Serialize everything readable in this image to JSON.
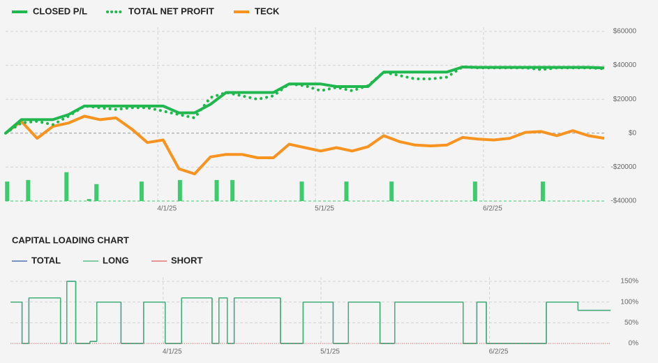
{
  "chart_data": [
    {
      "type": "line",
      "x": [
        2,
        5,
        8,
        11,
        14,
        17,
        20,
        23,
        26,
        29,
        32,
        35,
        38,
        41,
        44,
        47,
        50,
        53,
        56,
        59,
        62,
        65,
        68,
        71,
        74,
        77,
        80,
        83,
        86,
        89,
        92,
        95,
        98,
        101,
        104,
        107,
        110,
        113,
        116
      ],
      "series": [
        {
          "name": "CLOSED P/L",
          "color": "#1fb74e",
          "style": "solid",
          "values": [
            0,
            8000,
            8000,
            8000,
            11000,
            16000,
            16000,
            16000,
            16000,
            16000,
            16000,
            12000,
            12000,
            17000,
            24000,
            24000,
            24000,
            24000,
            29000,
            29000,
            29000,
            27500,
            27500,
            27500,
            36000,
            36000,
            36000,
            36000,
            36000,
            39000,
            38800,
            38800,
            38800,
            38800,
            38800,
            38800,
            38800,
            38800,
            38500
          ]
        },
        {
          "name": "TOTAL NET PROFIT",
          "color": "#1fb74e",
          "style": "dotted",
          "values": [
            0,
            6000,
            7000,
            5000,
            10000,
            16000,
            15000,
            14000,
            15000,
            15000,
            13000,
            11000,
            9000,
            21000,
            24000,
            22000,
            20000,
            22000,
            29000,
            28000,
            25000,
            27000,
            25000,
            28000,
            36000,
            34000,
            32000,
            32000,
            33000,
            39000,
            38500,
            38500,
            38500,
            38500,
            37500,
            38500,
            38500,
            38500,
            38000
          ]
        },
        {
          "name": "TECK",
          "color": "#f7931e",
          "style": "solid",
          "values": [
            0,
            7000,
            -3000,
            4000,
            6000,
            10000,
            8000,
            9000,
            2500,
            -5500,
            -4000,
            -21000,
            -24000,
            -14000,
            -12500,
            -12500,
            -14500,
            -14500,
            -6500,
            -8500,
            -10500,
            -8500,
            -10500,
            -8000,
            -1500,
            -5000,
            -7000,
            -7500,
            -7000,
            -2500,
            -3500,
            -4000,
            -3000,
            500,
            1000,
            -1500,
            1500,
            -1500,
            -3000
          ]
        }
      ],
      "bars": {
        "color": "#3ecb6d",
        "x": [
          2.3,
          6.3,
          13.6,
          17.9,
          19.3,
          27.9,
          35.2,
          42.2,
          45.2,
          58.4,
          66.9,
          75.5,
          91.4,
          104.3
        ],
        "values": [
          -28500,
          -27600,
          -23000,
          -38800,
          -30000,
          -28500,
          -27600,
          -27600,
          -27600,
          -28500,
          -28500,
          -28500,
          -28500,
          -28500
        ]
      },
      "xlim": [
        2,
        116
      ],
      "xticks": [
        {
          "value": 31,
          "label": "4/1/25"
        },
        {
          "value": 61,
          "label": "5/1/25"
        },
        {
          "value": 93,
          "label": "6/2/25"
        }
      ],
      "ylim": [
        -40000,
        60000
      ],
      "yticks": [
        {
          "value": -40000,
          "label": "-$40000"
        },
        {
          "value": -20000,
          "label": "-$20000"
        },
        {
          "value": 0,
          "label": "$0"
        },
        {
          "value": 20000,
          "label": "$20000"
        },
        {
          "value": 40000,
          "label": "$40000"
        },
        {
          "value": 60000,
          "label": "$60000"
        }
      ],
      "grid": true
    },
    {
      "type": "step",
      "title": "CAPITAL LOADING CHART",
      "series": [
        {
          "name": "TOTAL",
          "color": "#2f55a4",
          "x": [
            2,
            4.2,
            5.5,
            11.5,
            12.7,
            14.4,
            17.1,
            18.4,
            23,
            27.3,
            31.4,
            34.5,
            40.3,
            41.6,
            43.2,
            44.5,
            53.3,
            57.6,
            63.3,
            66.2,
            72.2,
            75,
            88,
            90.6,
            92.4,
            103.8,
            109.8,
            116
          ],
          "values": [
            100,
            0,
            110,
            0,
            150,
            0,
            5,
            100,
            0,
            100,
            0,
            110,
            0,
            110,
            0,
            110,
            0,
            100,
            0,
            100,
            0,
            100,
            0,
            100,
            0,
            100,
            80,
            80
          ]
        },
        {
          "name": "LONG",
          "color": "#3cb371",
          "x": [
            2,
            4.2,
            5.5,
            11.5,
            12.7,
            14.4,
            17.1,
            18.4,
            23,
            27.3,
            31.4,
            34.5,
            40.3,
            41.6,
            43.2,
            44.5,
            53.3,
            57.6,
            63.3,
            66.2,
            72.2,
            75,
            88,
            90.6,
            92.4,
            103.8,
            109.8,
            116
          ],
          "values": [
            100,
            0,
            110,
            0,
            150,
            0,
            5,
            100,
            0,
            100,
            0,
            110,
            0,
            110,
            0,
            110,
            0,
            100,
            0,
            100,
            0,
            100,
            0,
            100,
            0,
            100,
            80,
            80
          ]
        },
        {
          "name": "SHORT",
          "color": "#e05a5a",
          "x": [
            2,
            116
          ],
          "values": [
            0,
            0
          ]
        }
      ],
      "xlim": [
        2,
        116
      ],
      "xticks": [
        {
          "value": 31,
          "label": "4/1/25"
        },
        {
          "value": 61,
          "label": "5/1/25"
        },
        {
          "value": 93,
          "label": "6/2/25"
        }
      ],
      "ylim": [
        0,
        150
      ],
      "yticks": [
        {
          "value": 0,
          "label": "0%"
        },
        {
          "value": 50,
          "label": "50%"
        },
        {
          "value": 100,
          "label": "100%"
        },
        {
          "value": 150,
          "label": "150%"
        }
      ],
      "grid": true
    }
  ]
}
